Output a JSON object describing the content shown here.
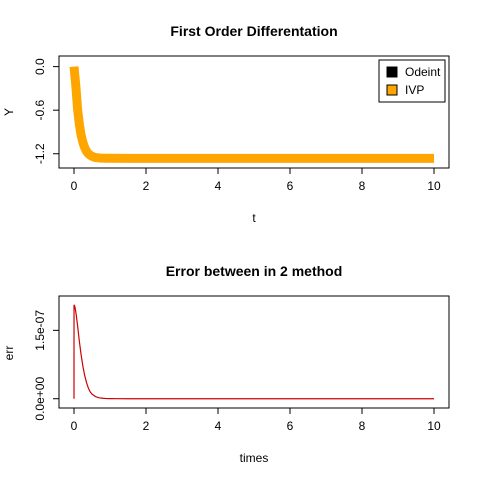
{
  "chart_data": [
    {
      "type": "line",
      "title": "First Order Differentation",
      "xlabel": "t",
      "ylabel": "Y",
      "xlim": [
        0,
        10
      ],
      "ylim": [
        -1.3,
        0.05
      ],
      "xticks": [
        0,
        2,
        4,
        6,
        8,
        10
      ],
      "xtick_labels": [
        "0",
        "2",
        "4",
        "6",
        "8",
        "10"
      ],
      "yticks": [
        0.0,
        -0.6,
        -1.2
      ],
      "ytick_labels": [
        "0.0",
        "-0.6",
        "-1.2"
      ],
      "legend_position": "top-right",
      "series": [
        {
          "name": "Odeint",
          "color": "#000000"
        },
        {
          "name": "IVP",
          "color": "#FFA500",
          "x": [
            0,
            0.05,
            0.1,
            0.15,
            0.2,
            0.25,
            0.3,
            0.35,
            0.4,
            0.45,
            0.5,
            0.55,
            0.6,
            0.7,
            0.8,
            0.9,
            1.0,
            1.5,
            2,
            3,
            4,
            5,
            6,
            7,
            8,
            9,
            10
          ],
          "y": [
            0.0,
            -0.26,
            -0.59,
            -0.8,
            -0.95,
            -1.05,
            -1.12,
            -1.17,
            -1.2,
            -1.22,
            -1.235,
            -1.245,
            -1.252,
            -1.258,
            -1.261,
            -1.262,
            -1.263,
            -1.264,
            -1.264,
            -1.264,
            -1.264,
            -1.264,
            -1.264,
            -1.264,
            -1.264,
            -1.264,
            -1.264
          ]
        }
      ]
    },
    {
      "type": "line",
      "title": "Error between in 2 method",
      "xlabel": "times",
      "ylabel": "err",
      "xlim": [
        0,
        10
      ],
      "ylim": [
        -5e-09,
        2.1e-07
      ],
      "xticks": [
        0,
        2,
        4,
        6,
        8,
        10
      ],
      "xtick_labels": [
        "0",
        "2",
        "4",
        "6",
        "8",
        "10"
      ],
      "yticks": [
        0,
        1.5e-07
      ],
      "ytick_labels": [
        "0.0e+00",
        "1.5e-07"
      ],
      "series": [
        {
          "name": "",
          "color": "#CC0000",
          "x": [
            0,
            0.0005,
            0.01,
            0.03,
            0.06,
            0.1,
            0.15,
            0.2,
            0.25,
            0.3,
            0.35,
            0.4,
            0.45,
            0.5,
            0.6,
            0.7,
            0.8,
            0.9,
            1.0,
            1.2,
            1.5,
            2,
            3,
            4,
            5,
            6,
            7,
            8,
            9,
            10
          ],
          "y": [
            0,
            2.05e-07,
            2.05e-07,
            2e-07,
            1.85e-07,
            1.6e-07,
            1.25e-07,
            9.5e-08,
            7e-08,
            5e-08,
            3.5e-08,
            2.3e-08,
            1.5e-08,
            1e-08,
            4.5e-09,
            2e-09,
            1e-09,
            4e-10,
            2e-10,
            5e-11,
            0,
            0,
            0,
            0,
            0,
            0,
            0,
            0,
            0,
            0
          ]
        }
      ]
    }
  ]
}
